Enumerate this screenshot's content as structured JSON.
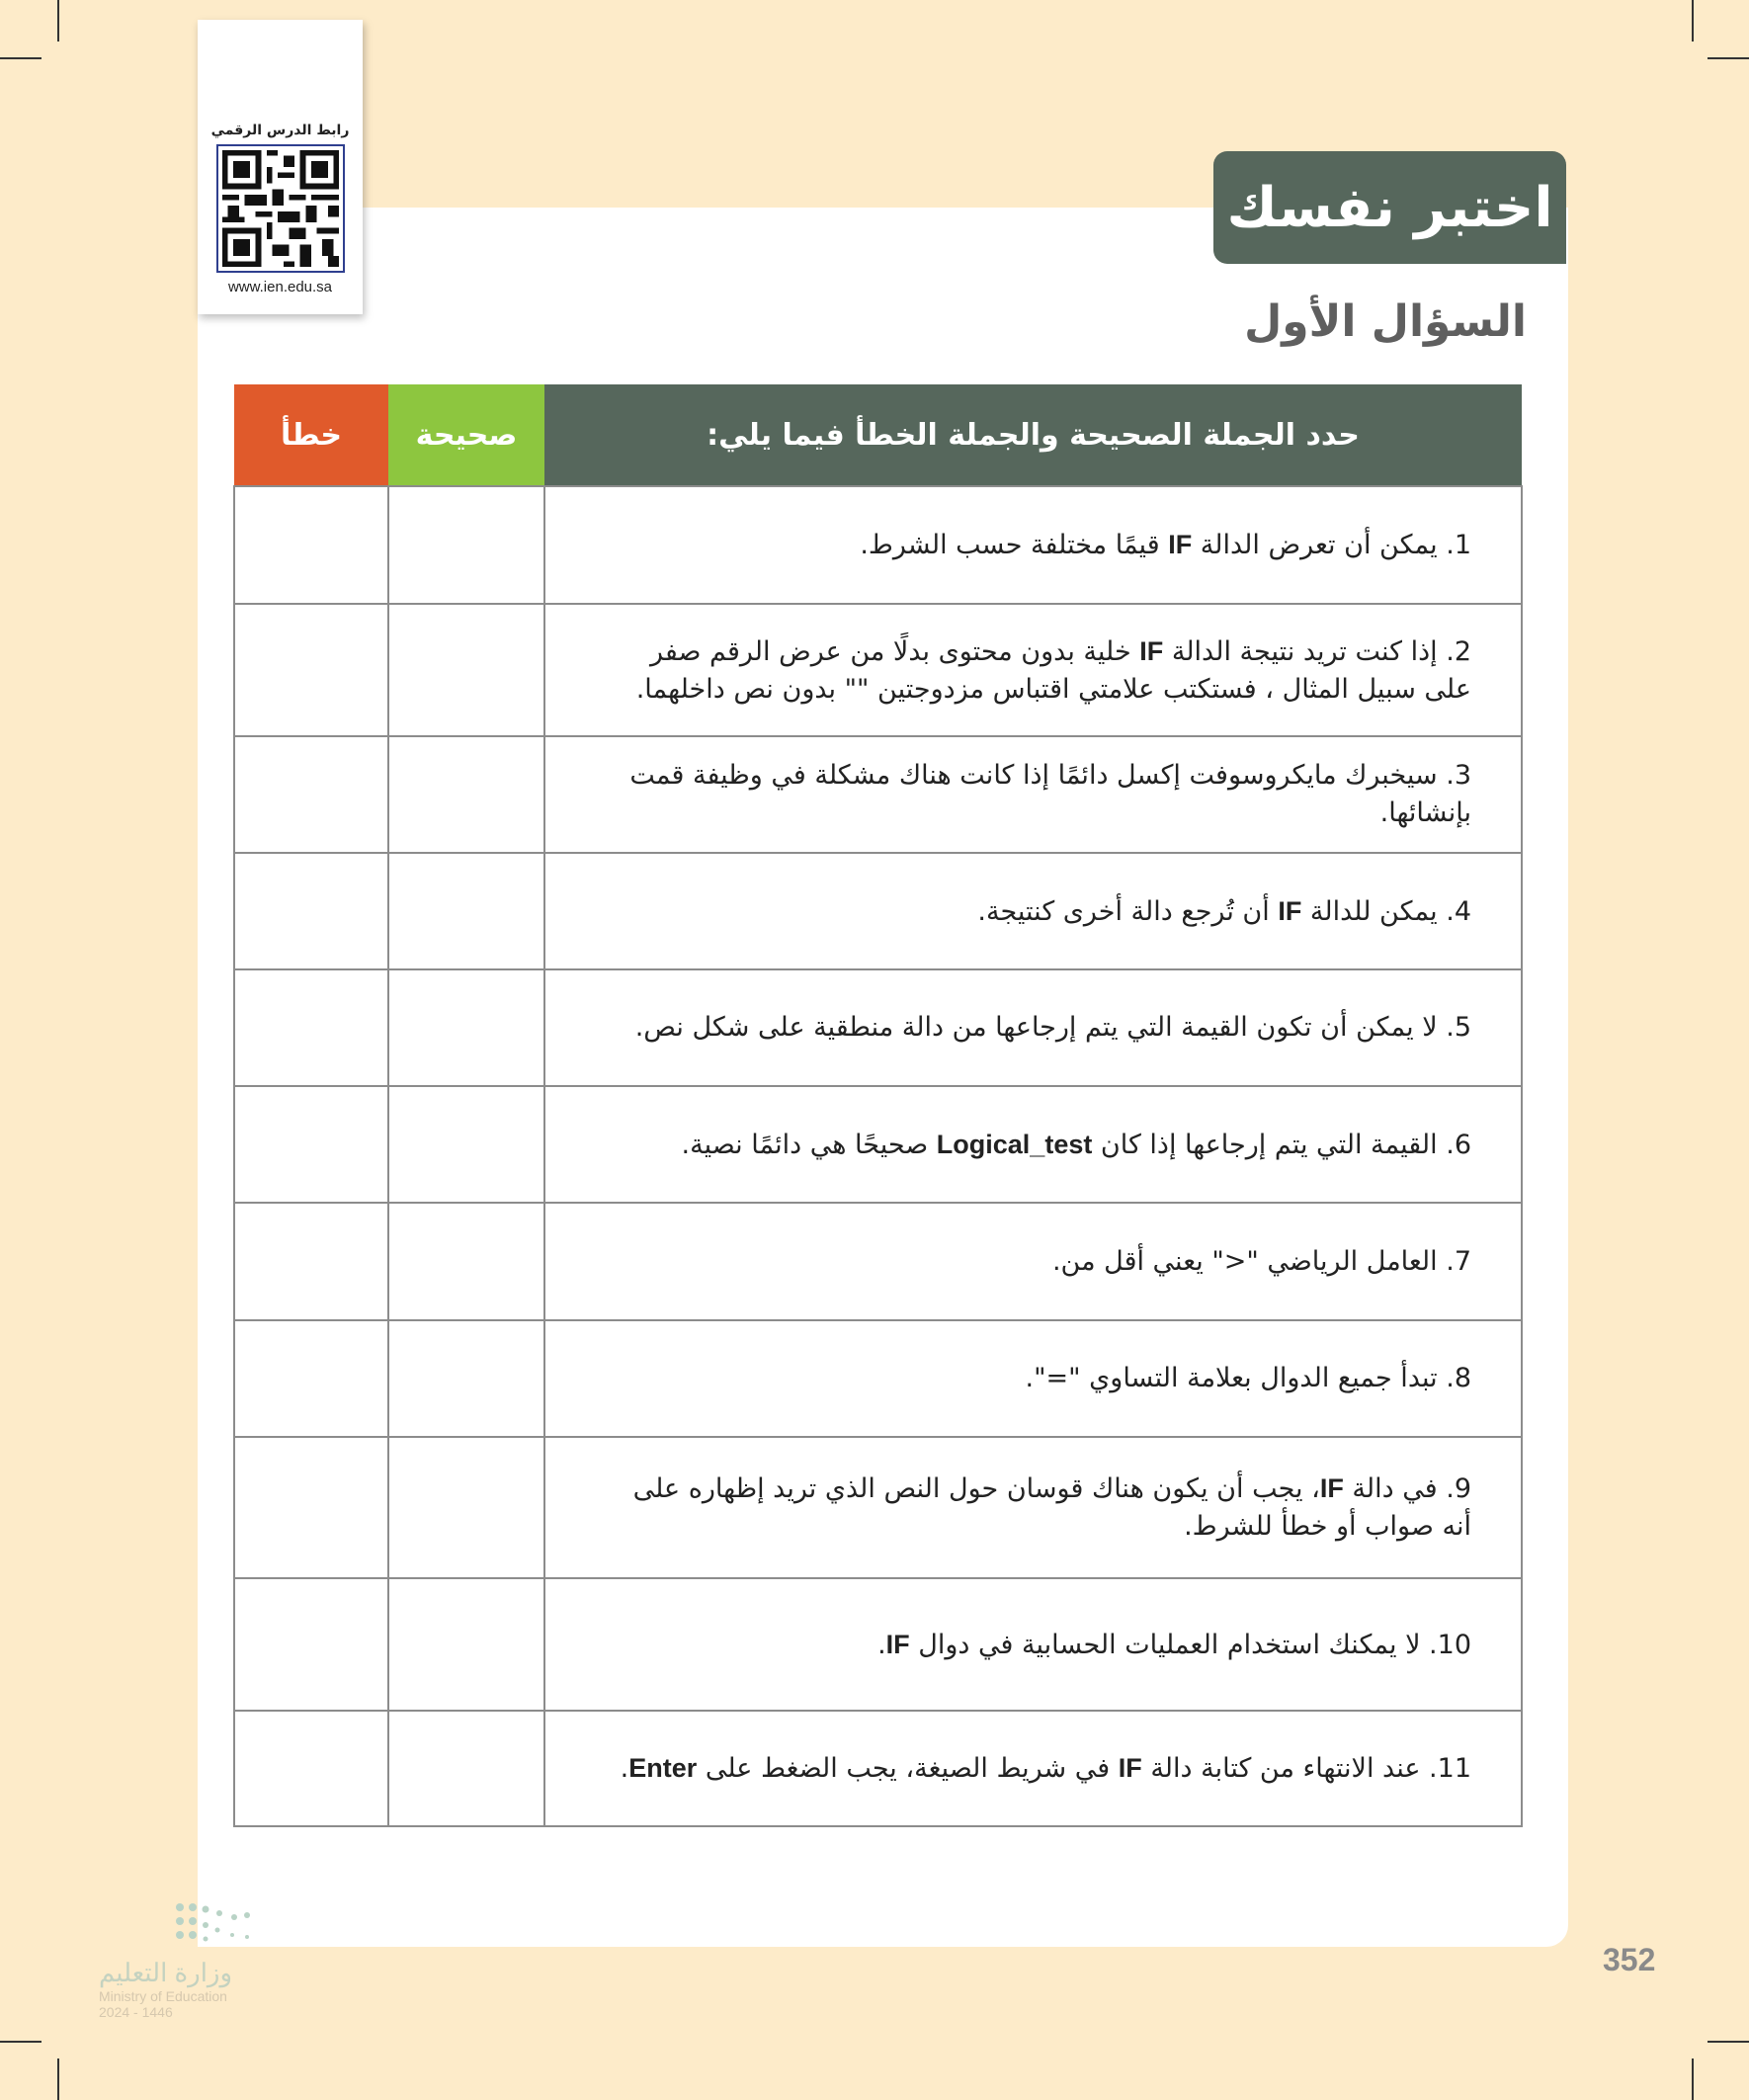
{
  "qr": {
    "label": "رابط الدرس الرقمي",
    "url": "www.ien.edu.sa"
  },
  "title": "اختبر نفسك",
  "subtitle": "السؤال الأول",
  "table": {
    "headers": {
      "statement": "حدد الجملة الصحيحة والجملة الخطأ فيما يلي:",
      "true": "صحيحة",
      "false": "خطأ"
    },
    "colors": {
      "header": "#56675c",
      "true": "#8dc63f",
      "false": "#e05a2b"
    },
    "rows": [
      {
        "parts": [
          {
            "t": "1. يمكن أن تعرض الدالة "
          },
          {
            "t": "IF",
            "b": true
          },
          {
            "t": " قيمًا مختلفة حسب الشرط."
          }
        ]
      },
      {
        "parts": [
          {
            "t": "2. إذا كنت تريد نتيجة الدالة "
          },
          {
            "t": "IF",
            "b": true
          },
          {
            "t": " خلية بدون محتوى بدلًا من عرض الرقم صفر على سبيل المثال ، فستكتب علامتي اقتباس مزدوجتين \"\" بدون نص داخلهما."
          }
        ]
      },
      {
        "parts": [
          {
            "t": "3. سيخبرك مايكروسوفت إكسل دائمًا إذا كانت هناك مشكلة في وظيفة قمت بإنشائها."
          }
        ]
      },
      {
        "parts": [
          {
            "t": "4. يمكن للدالة "
          },
          {
            "t": "IF",
            "b": true
          },
          {
            "t": " أن تُرجع دالة أخرى كنتيجة."
          }
        ]
      },
      {
        "parts": [
          {
            "t": "5. لا يمكن أن تكون القيمة التي يتم إرجاعها من دالة منطقية على شكل نص."
          }
        ]
      },
      {
        "parts": [
          {
            "t": "6. القيمة التي يتم إرجاعها إذا كان "
          },
          {
            "t": "Logical_test",
            "b": true
          },
          {
            "t": " صحيحًا هي دائمًا نصية."
          }
        ]
      },
      {
        "parts": [
          {
            "t": "7. العامل الرياضي \"<\" يعني أقل من."
          }
        ]
      },
      {
        "parts": [
          {
            "t": "8. تبدأ جميع الدوال بعلامة التساوي \"=\"."
          }
        ]
      },
      {
        "parts": [
          {
            "t": "9. في دالة "
          },
          {
            "t": "IF",
            "b": true
          },
          {
            "t": "، يجب أن يكون هناك قوسان حول النص الذي تريد إظهاره على أنه صواب أو خطأ للشرط."
          }
        ]
      },
      {
        "parts": [
          {
            "t": "10. لا يمكنك استخدام العمليات الحسابية في دوال "
          },
          {
            "t": "IF",
            "b": true
          },
          {
            "t": "."
          }
        ]
      },
      {
        "parts": [
          {
            "t": "11. عند الانتهاء من كتابة دالة "
          },
          {
            "t": "IF",
            "b": true
          },
          {
            "t": " في شريط الصيغة، يجب الضغط على "
          },
          {
            "t": "Enter",
            "b": true
          },
          {
            "t": "."
          }
        ]
      }
    ]
  },
  "page_number": "352",
  "footer": {
    "ministry_ar": "وزارة التعليم",
    "ministry_en": "Ministry of Education",
    "year": "2024 - 1446"
  }
}
